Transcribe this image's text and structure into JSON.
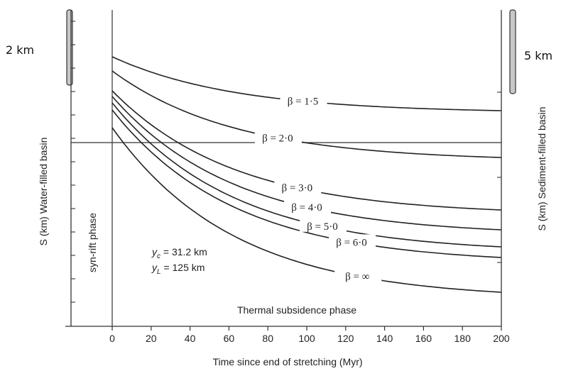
{
  "chart_data": {
    "type": "line",
    "xlabel": "Time since end of stretching (Myr)",
    "ylabel_left": "S (km) Water-filled basin",
    "ylabel_right": "S (km) Sediment-filled basin",
    "xlim": [
      -20,
      200
    ],
    "x_ticks": [
      0,
      20,
      40,
      60,
      80,
      100,
      120,
      140,
      160,
      180,
      200
    ],
    "scale_bars": {
      "left": "2 km",
      "right": "5 km"
    },
    "annotations": {
      "syn_rift": "syn-rift phase",
      "thermal": "Thermal subsidence phase",
      "yc": "y",
      "yc_sub": "c",
      "yc_value": " = 31.2 km",
      "yl": "y",
      "yl_sub": "L",
      "yl_value": " = 125 km"
    },
    "series": [
      {
        "name": "β = 1·5",
        "start": 0.75,
        "end": 2.15
      },
      {
        "name": "β = 2·0",
        "start": 1.15,
        "end": 3.1
      },
      {
        "name": "β = 3·0",
        "start": 1.7,
        "end": 4.05
      },
      {
        "name": "β = 4·0",
        "start": 1.85,
        "end": 4.45
      },
      {
        "name": "β = 5·0",
        "start": 1.98,
        "end": 4.75
      },
      {
        "name": "β = 6·0",
        "start": 2.1,
        "end": 4.98
      },
      {
        "name": "β = ∞",
        "start": 2.45,
        "end": 5.55
      }
    ]
  }
}
